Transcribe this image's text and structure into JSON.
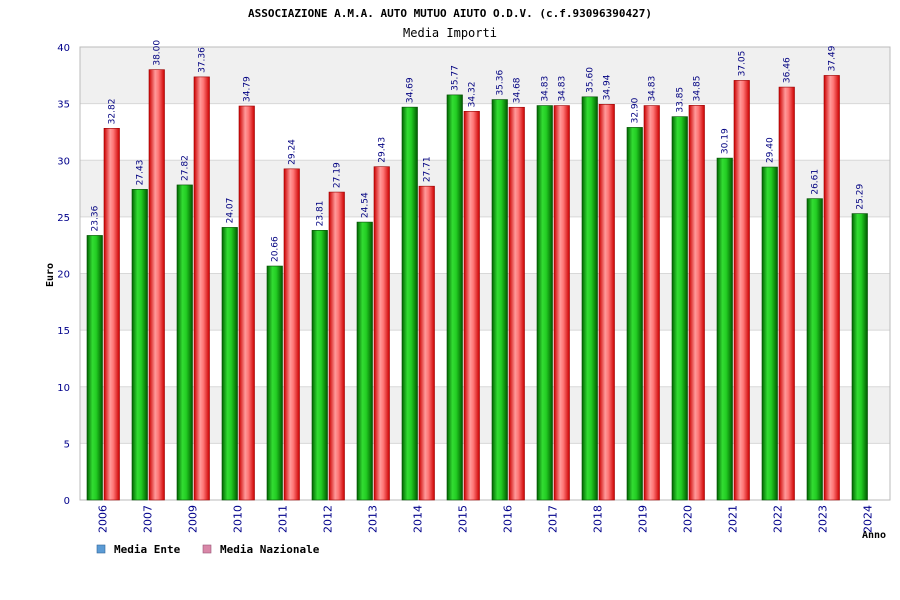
{
  "chart_data": {
    "type": "bar",
    "title": "ASSOCIAZIONE A.M.A. AUTO MUTUO AIUTO O.D.V. (c.f.93096390427)",
    "subtitle": "Media Importi",
    "xlabel": "Anno",
    "ylabel": "Euro",
    "ylim": [
      0,
      40
    ],
    "yticks": [
      0,
      5,
      10,
      15,
      20,
      25,
      30,
      35,
      40
    ],
    "categories": [
      "2006",
      "2007",
      "2009",
      "2010",
      "2011",
      "2012",
      "2013",
      "2014",
      "2015",
      "2016",
      "2017",
      "2018",
      "2019",
      "2020",
      "2021",
      "2022",
      "2023",
      "2024"
    ],
    "series": [
      {
        "name": "Media Ente",
        "color": "#00a000",
        "legend_color": "#5b9bd5",
        "values": [
          23.36,
          27.43,
          27.82,
          24.07,
          20.66,
          23.81,
          24.54,
          34.69,
          35.77,
          35.36,
          34.83,
          35.6,
          32.9,
          33.85,
          30.19,
          29.4,
          26.61,
          25.29
        ],
        "labels": [
          "23.36",
          "27.43",
          "27.82",
          "24.07",
          "20.66",
          "23.81",
          "24.54",
          "34.69",
          "35.77",
          "35.36",
          "34.83",
          "35.60",
          "32.90",
          "33.85",
          "30.19",
          "29.40",
          "26.61",
          "25.29"
        ]
      },
      {
        "name": "Media Nazionale",
        "color": "#e00000",
        "legend_color": "#d987a8",
        "values": [
          32.82,
          38.0,
          37.36,
          34.79,
          29.24,
          27.19,
          29.43,
          27.71,
          34.32,
          34.68,
          34.83,
          34.94,
          34.83,
          34.85,
          37.05,
          36.46,
          37.49,
          null
        ],
        "labels": [
          "32.82",
          "38.00",
          "37.36",
          "34.79",
          "29.24",
          "27.19",
          "29.43",
          "27.71",
          "34.32",
          "34.68",
          "34.83",
          "34.94",
          "34.83",
          "34.85",
          "37.05",
          "36.46",
          "37.49",
          ""
        ]
      }
    ],
    "legend_position": "bottom-left",
    "grid": true
  }
}
